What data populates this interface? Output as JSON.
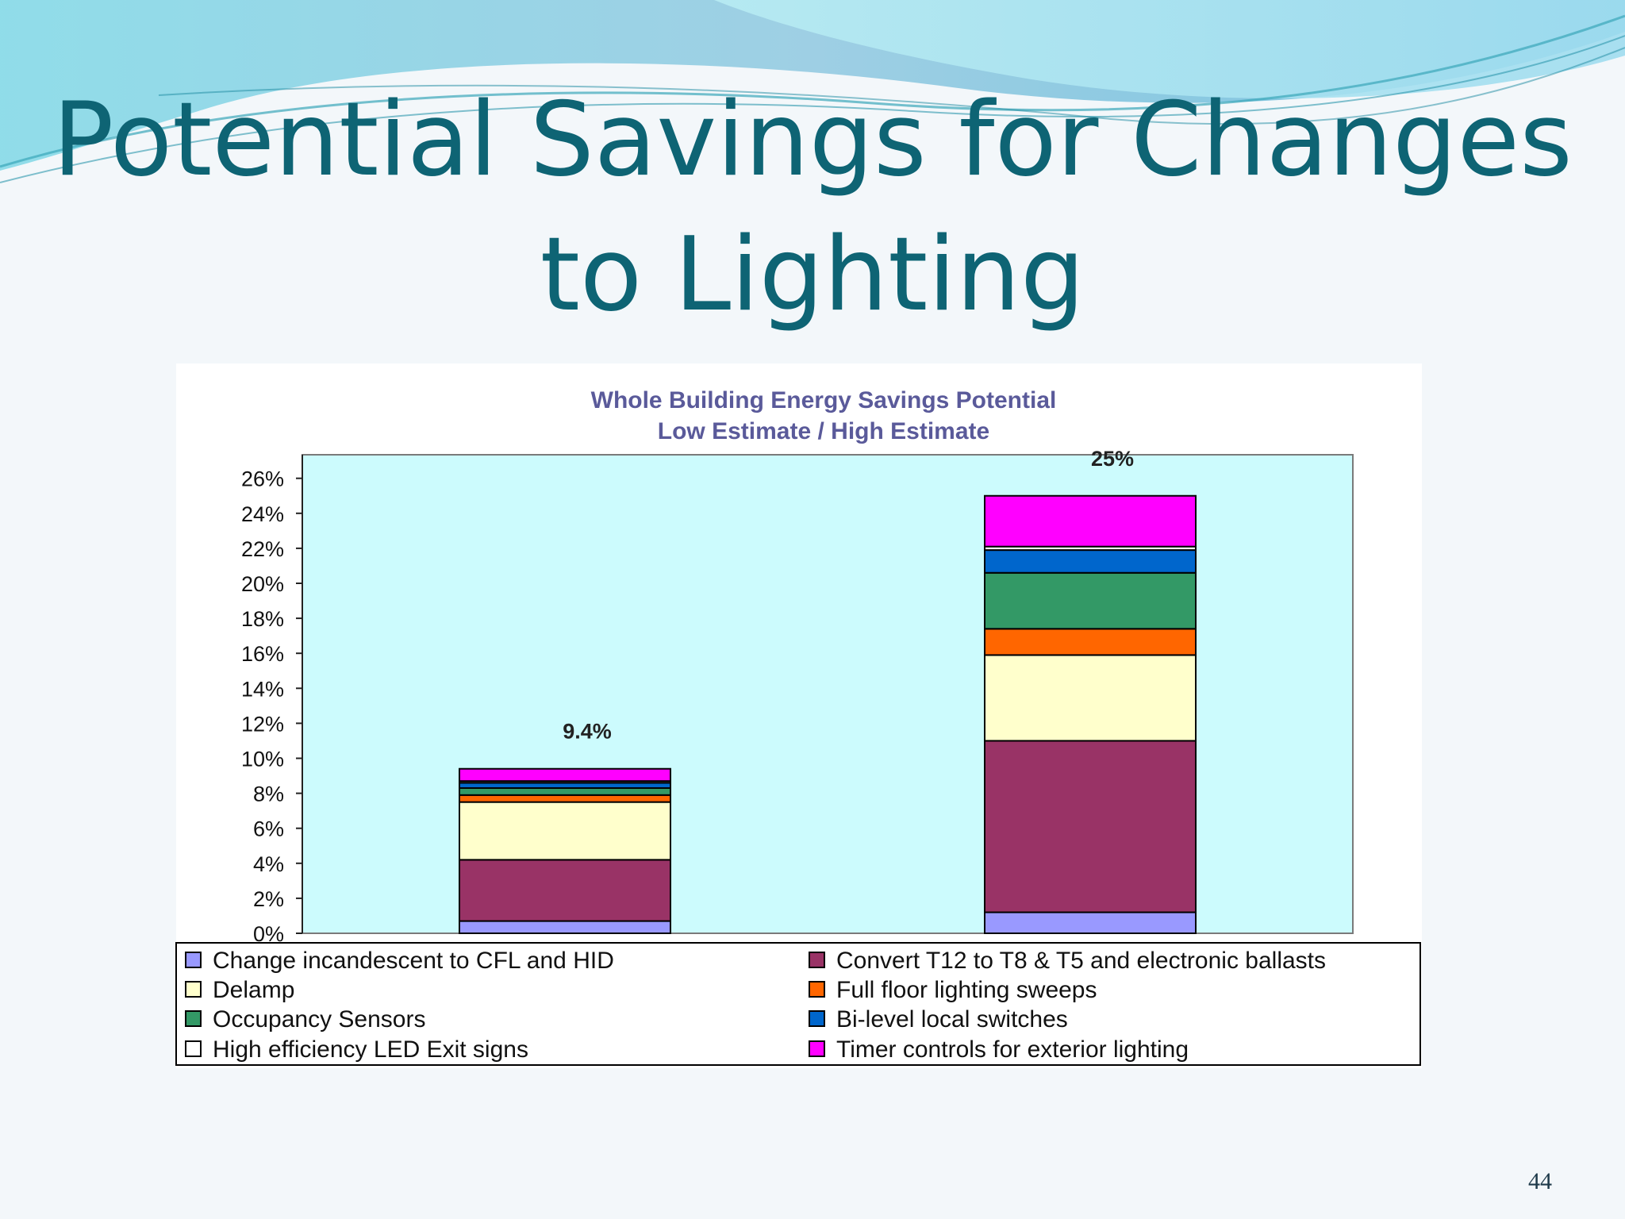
{
  "slide": {
    "title_line1": "Potential Savings for Changes",
    "title_line2": "to Lighting",
    "page_number": "44"
  },
  "colors": {
    "title": "#0e6474",
    "chart_title": "#5a5a9a",
    "plot_bg": "#ccfbfd"
  },
  "chart_data": {
    "type": "bar",
    "stacked": true,
    "title": "Whole Building Energy Savings Potential",
    "subtitle": "Low Estimate / High Estimate",
    "categories": [
      "",
      ""
    ],
    "ylim": [
      0,
      27
    ],
    "yticks": [
      0,
      2,
      4,
      6,
      8,
      10,
      12,
      14,
      16,
      18,
      20,
      22,
      24,
      26
    ],
    "ytick_labels": [
      "0%",
      "2%",
      "4%",
      "6%",
      "8%",
      "10%",
      "12%",
      "14%",
      "16%",
      "18%",
      "20%",
      "22%",
      "24%",
      "26%"
    ],
    "totals": [
      9.4,
      25
    ],
    "total_labels": [
      "9.4%",
      "25%"
    ],
    "grid": false,
    "legend_position": "bottom",
    "series": [
      {
        "name": "Change incandescent to CFL and HID",
        "color": "#9999ff",
        "values": [
          0.7,
          1.2
        ]
      },
      {
        "name": "Convert T12 to T8 & T5 and electronic ballasts",
        "color": "#993366",
        "values": [
          3.5,
          9.8
        ]
      },
      {
        "name": "Delamp",
        "color": "#ffffcc",
        "values": [
          3.3,
          4.9
        ]
      },
      {
        "name": "Full floor lighting sweeps",
        "color": "#ff6600",
        "values": [
          0.4,
          1.5
        ]
      },
      {
        "name": "Occupancy Sensors",
        "color": "#339966",
        "values": [
          0.4,
          3.2
        ]
      },
      {
        "name": "Bi-level local switches",
        "color": "#0066cc",
        "values": [
          0.3,
          1.3
        ]
      },
      {
        "name": "High efficiency LED Exit signs",
        "color": "#ffffff",
        "values": [
          0.1,
          0.2
        ]
      },
      {
        "name": "Timer controls for exterior lighting",
        "color": "#ff00ff",
        "values": [
          0.7,
          2.9
        ]
      }
    ],
    "legend_order": [
      0,
      1,
      2,
      3,
      4,
      5,
      6,
      7
    ]
  }
}
